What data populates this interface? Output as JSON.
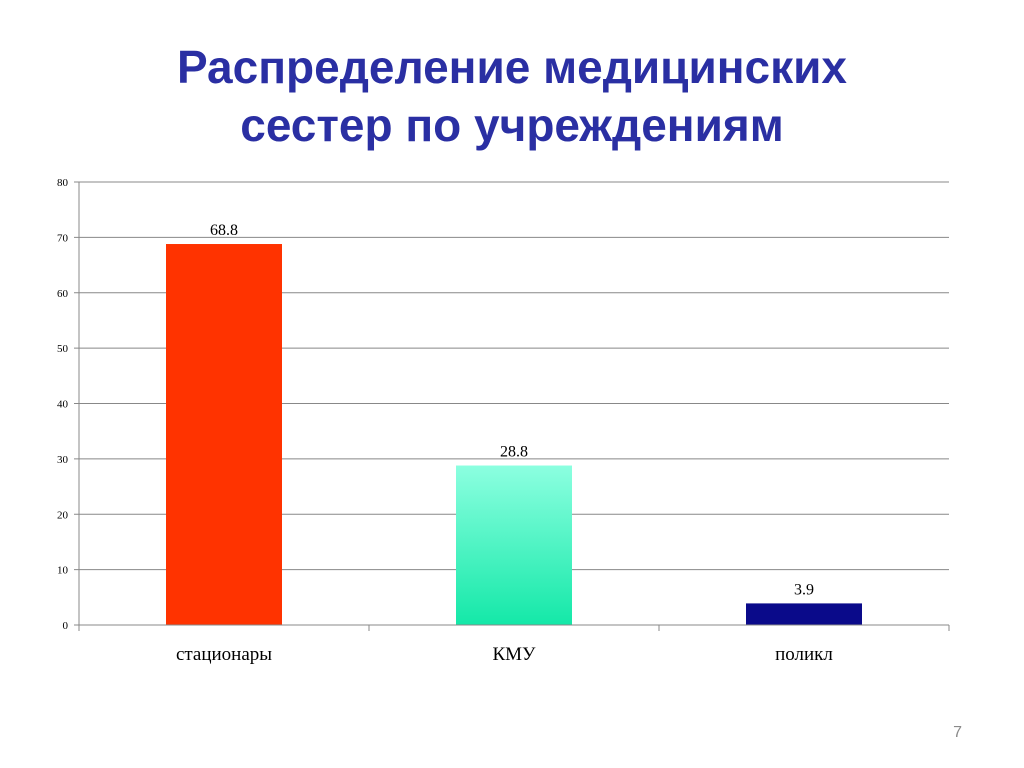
{
  "slide": {
    "title_line1": "Распределение медицинских",
    "title_line2": "сестер по учреждениям",
    "page_number": "7"
  },
  "chart_data": {
    "type": "bar",
    "categories": [
      "стационары",
      "КМУ",
      "поликл"
    ],
    "values": [
      68.8,
      28.8,
      3.9
    ],
    "data_labels": [
      "68.8",
      "28.8",
      "3.9"
    ],
    "ylim": [
      0,
      80
    ],
    "yticks": [
      0,
      10,
      20,
      30,
      40,
      50,
      60,
      70,
      80
    ],
    "grid": true,
    "legend": "none",
    "colors": {
      "bars": [
        "#ff3300",
        "#4ff0c0",
        "#0a0a8a"
      ],
      "grid": "#888888",
      "axis": "#888888",
      "tick_label": "#000000"
    }
  }
}
